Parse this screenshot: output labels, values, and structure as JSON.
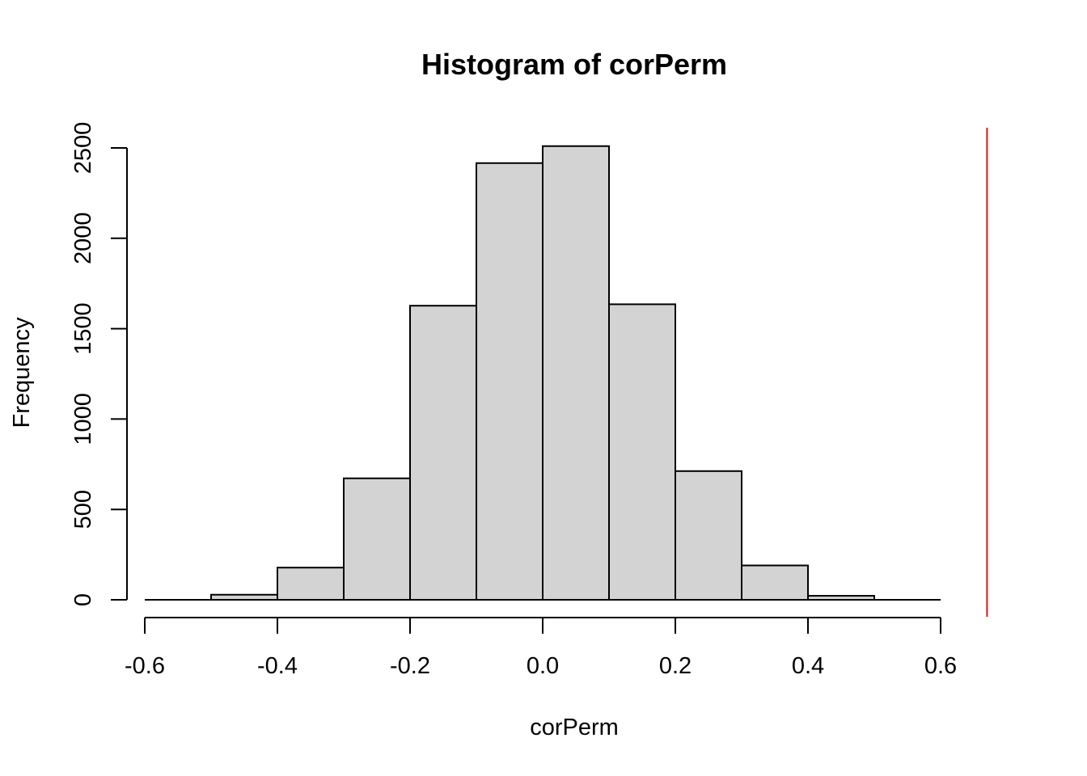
{
  "chart_data": {
    "type": "bar",
    "title": "Histogram of corPerm",
    "xlabel": "corPerm",
    "ylabel": "Frequency",
    "bins": [
      {
        "from": -0.6,
        "to": -0.5,
        "count": 0
      },
      {
        "from": -0.5,
        "to": -0.4,
        "count": 28
      },
      {
        "from": -0.4,
        "to": -0.3,
        "count": 178
      },
      {
        "from": -0.3,
        "to": -0.2,
        "count": 672
      },
      {
        "from": -0.2,
        "to": -0.1,
        "count": 1627
      },
      {
        "from": -0.1,
        "to": 0.0,
        "count": 2416
      },
      {
        "from": 0.0,
        "to": 0.1,
        "count": 2510
      },
      {
        "from": 0.1,
        "to": 0.2,
        "count": 1635
      },
      {
        "from": 0.2,
        "to": 0.3,
        "count": 712
      },
      {
        "from": 0.3,
        "to": 0.4,
        "count": 190
      },
      {
        "from": 0.4,
        "to": 0.5,
        "count": 22
      },
      {
        "from": 0.5,
        "to": 0.6,
        "count": 0
      }
    ],
    "xlim": [
      -0.6,
      0.6
    ],
    "ylim": [
      0,
      2500
    ],
    "xticks": [
      -0.6,
      -0.4,
      -0.2,
      0.0,
      0.2,
      0.4,
      0.6
    ],
    "xtick_labels": [
      "-0.6",
      "-0.4",
      "-0.2",
      "0.0",
      "0.2",
      "0.4",
      "0.6"
    ],
    "yticks": [
      0,
      500,
      1000,
      1500,
      2000,
      2500
    ],
    "ytick_labels": [
      "0",
      "500",
      "1000",
      "1500",
      "2000",
      "2500"
    ],
    "reference_line": {
      "x": 0.67,
      "color": "#e0141e",
      "orientation": "vertical"
    },
    "bar_fill": "#d3d3d3",
    "grid": false
  }
}
